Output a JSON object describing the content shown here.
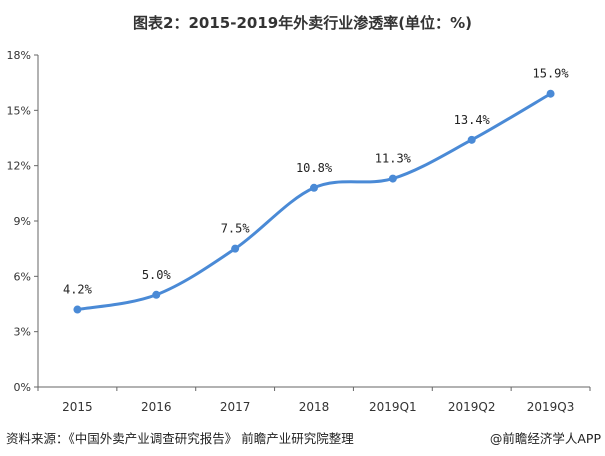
{
  "title": "图表2：2015-2019年外卖行业渗透率(单位：%)",
  "chart_data": {
    "type": "line",
    "title": "图表2：2015-2019年外卖行业渗透率(单位：%)",
    "categories": [
      "2015",
      "2016",
      "2017",
      "2018",
      "2019Q1",
      "2019Q2",
      "2019Q3"
    ],
    "values": [
      4.2,
      5.0,
      7.5,
      10.8,
      11.3,
      13.4,
      15.9
    ],
    "data_labels": [
      "4.2%",
      "5.0%",
      "7.5%",
      "10.8%",
      "11.3%",
      "13.4%",
      "15.9%"
    ],
    "ylim": [
      0,
      18
    ],
    "yticks": [
      "0%",
      "3%",
      "6%",
      "9%",
      "12%",
      "15%",
      "18%"
    ],
    "grid": false,
    "smooth": true,
    "color": "#4a8ad6"
  },
  "source": "资料来源：《中国外卖产业调查研究报告》 前瞻产业研究院整理",
  "credit": "@前瞻经济学人APP"
}
